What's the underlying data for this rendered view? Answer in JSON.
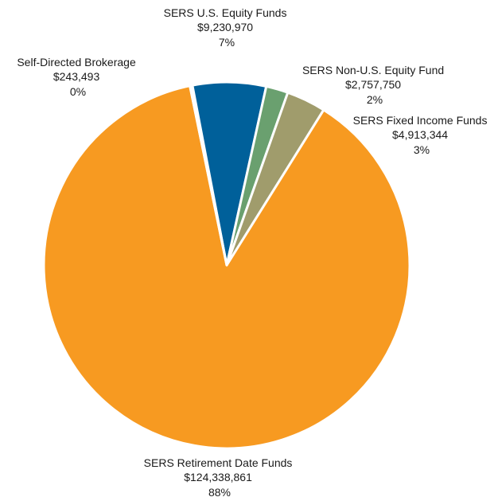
{
  "chart_data": {
    "type": "pie",
    "slices": [
      {
        "name": "SERS U.S. Equity Funds",
        "value": 9230970,
        "value_label": "$9,230,970",
        "percent_label": "7%",
        "color": "#00609a"
      },
      {
        "name": "SERS Non-U.S. Equity Fund",
        "value": 2757750,
        "value_label": "$2,757,750",
        "percent_label": "2%",
        "color": "#6aa06f"
      },
      {
        "name": "SERS Fixed Income Funds",
        "value": 4913344,
        "value_label": "$4,913,344",
        "percent_label": "3%",
        "color": "#a09c6c"
      },
      {
        "name": "SERS Retirement Date Funds",
        "value": 124338861,
        "value_label": "$124,338,861",
        "percent_label": "88%",
        "color": "#f79a21"
      },
      {
        "name": "Self-Directed Brokerage",
        "value": 243493,
        "value_label": "$243,493",
        "percent_label": "0%",
        "color": "#ffffff"
      }
    ],
    "legend": "none"
  }
}
